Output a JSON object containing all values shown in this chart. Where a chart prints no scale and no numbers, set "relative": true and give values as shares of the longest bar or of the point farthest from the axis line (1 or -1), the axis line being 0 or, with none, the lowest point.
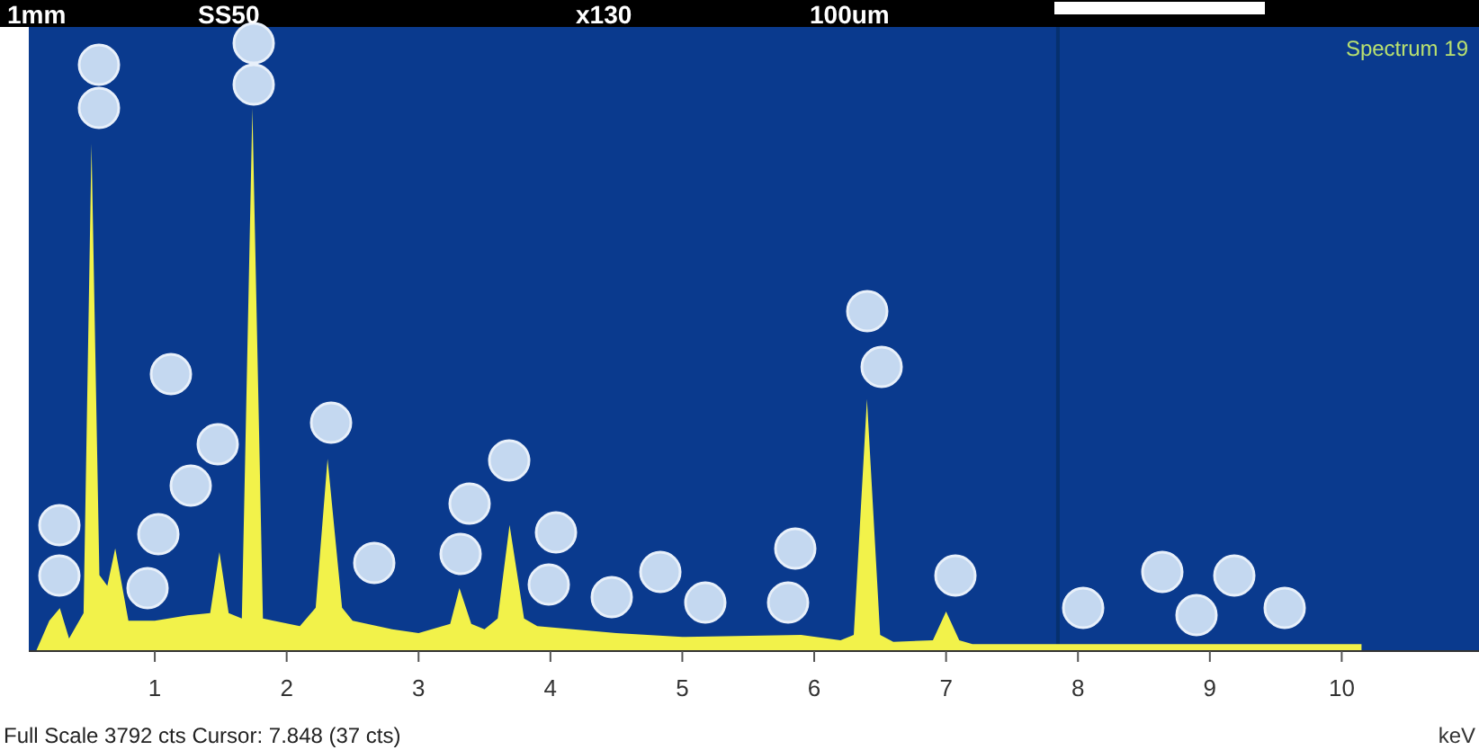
{
  "chart_data": {
    "type": "area",
    "title": "Spectrum 19",
    "xlabel": "keV",
    "relative": true,
    "color": "#f2f24a",
    "x": [
      0.1,
      0.2,
      0.28,
      0.35,
      0.46,
      0.52,
      0.58,
      0.64,
      0.7,
      0.8,
      1.0,
      1.25,
      1.42,
      1.49,
      1.56,
      1.66,
      1.74,
      1.82,
      1.9,
      2.1,
      2.22,
      2.31,
      2.42,
      2.5,
      2.8,
      3.0,
      3.24,
      3.31,
      3.4,
      3.5,
      3.6,
      3.69,
      3.8,
      3.9,
      4.5,
      5.0,
      5.9,
      6.2,
      6.3,
      6.4,
      6.5,
      6.6,
      6.9,
      7.0,
      7.1,
      7.2,
      8.0,
      10.15
    ],
    "values": [
      0,
      0.056,
      0.079,
      0.023,
      0.07,
      0.934,
      0.14,
      0.12,
      0.189,
      0.056,
      0.056,
      0.066,
      0.07,
      0.182,
      0.07,
      0.06,
      1,
      0.06,
      0.056,
      0.046,
      0.08,
      0.354,
      0.08,
      0.056,
      0.04,
      0.033,
      0.05,
      0.116,
      0.05,
      0.04,
      0.06,
      0.232,
      0.06,
      0.046,
      0.033,
      0.026,
      0.03,
      0.02,
      0.03,
      0.464,
      0.03,
      0.017,
      0.02,
      0.073,
      0.02,
      0.013,
      0.013,
      0.013
    ],
    "xlim": [
      0.05,
      11.0
    ],
    "xticks": [
      1,
      2,
      3,
      4,
      5,
      6,
      7,
      8,
      9,
      10
    ],
    "ref_lines": [
      {
        "axis": "x",
        "value": 7.848,
        "color": "#06306e"
      }
    ],
    "annotations": [
      "1mm",
      "SS50",
      "x130",
      "100um",
      "Full Scale 3792 cts Cursor: 7.848  (37 cts)"
    ]
  }
}
